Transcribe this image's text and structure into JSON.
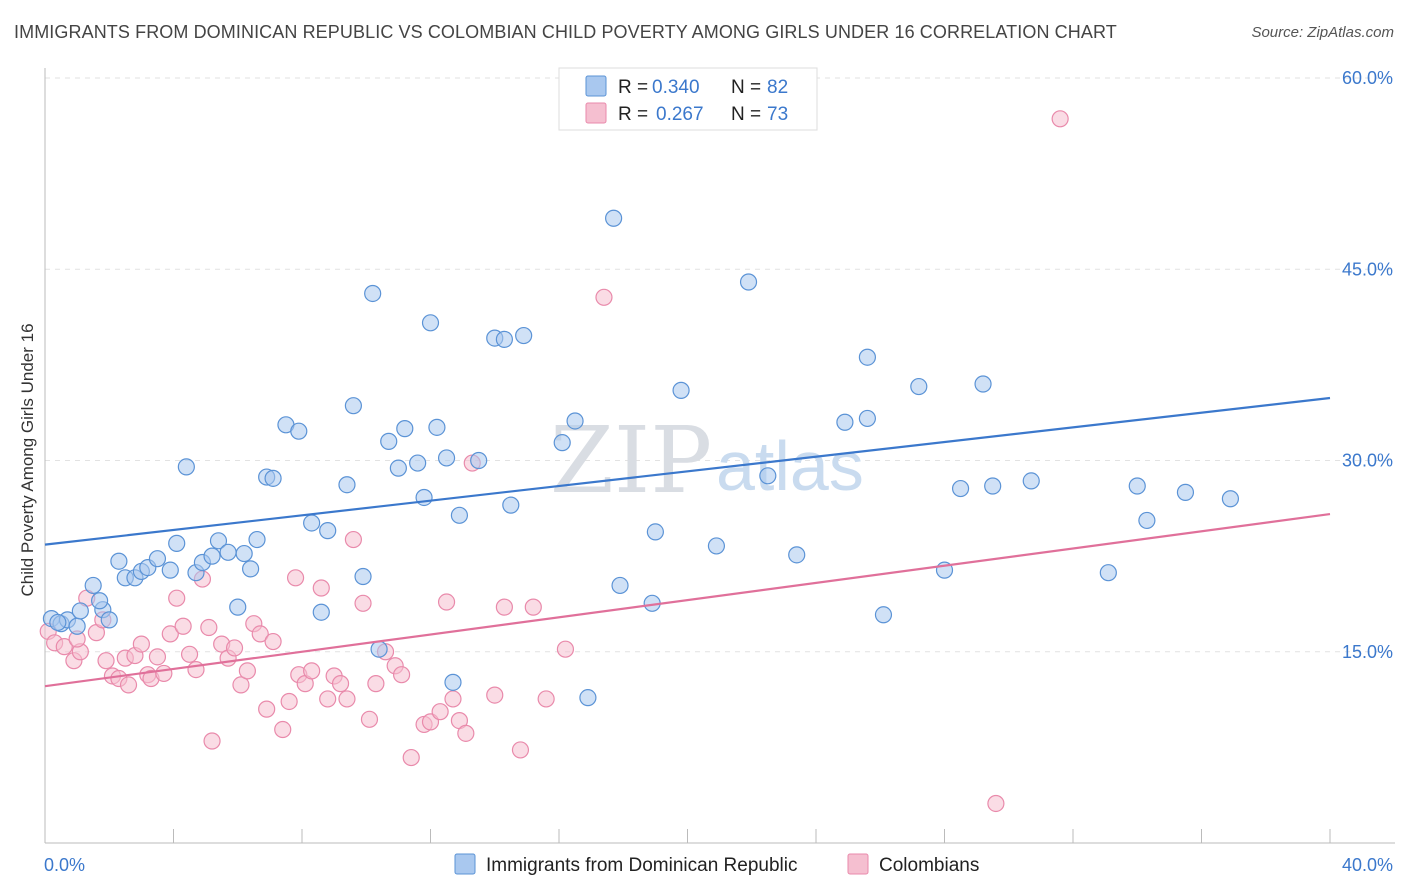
{
  "title": "IMMIGRANTS FROM DOMINICAN REPUBLIC VS COLOMBIAN CHILD POVERTY AMONG GIRLS UNDER 16 CORRELATION CHART",
  "source": "Source: ZipAtlas.com",
  "watermark": {
    "part1": "ZIP",
    "part2": "atlas"
  },
  "colors": {
    "blue": "#3b78cc",
    "blue_fill": "#a9c8ef",
    "blue_stroke": "#5b93d6",
    "pink": "#e0709a",
    "pink_fill": "#f5bfd0",
    "pink_stroke": "#e98aab",
    "grid": "#e2e2e2",
    "axis": "#bbbbbb"
  },
  "legend": {
    "items": [
      {
        "r_label": "R =",
        "r_value": "0.340",
        "n_label": "N =",
        "n_value": "82"
      },
      {
        "r_label": "R =",
        "r_value": "0.267",
        "n_label": "N =",
        "n_value": "73"
      }
    ]
  },
  "chart_data": {
    "type": "scatter",
    "title": "IMMIGRANTS FROM DOMINICAN REPUBLIC VS COLOMBIAN CHILD POVERTY AMONG GIRLS UNDER 16 CORRELATION CHART",
    "xlabel": "",
    "ylabel": "Child Poverty Among Girls Under 16",
    "xlim": [
      0,
      40
    ],
    "ylim": [
      0,
      60
    ],
    "x_tick_labels": [
      {
        "value": 0,
        "label": "0.0%"
      },
      {
        "value": 40,
        "label": "40.0%"
      }
    ],
    "y_tick_labels": [
      {
        "value": 15,
        "label": "15.0%"
      },
      {
        "value": 30,
        "label": "30.0%"
      },
      {
        "value": 45,
        "label": "45.0%"
      },
      {
        "value": 60,
        "label": "60.0%"
      }
    ],
    "grid": true,
    "legend_position": "top-center",
    "series": [
      {
        "name": "Immigrants from Dominican Republic",
        "color": "#3b78cc",
        "trend": {
          "x": [
            0,
            40
          ],
          "y": [
            23.4,
            34.9
          ]
        },
        "points": [
          [
            0.2,
            17.6
          ],
          [
            0.5,
            17.2
          ],
          [
            0.7,
            17.5
          ],
          [
            1.0,
            17.0
          ],
          [
            1.1,
            18.2
          ],
          [
            1.5,
            20.2
          ],
          [
            1.8,
            18.3
          ],
          [
            2.0,
            17.5
          ],
          [
            2.3,
            22.1
          ],
          [
            2.5,
            20.8
          ],
          [
            2.8,
            20.8
          ],
          [
            3.0,
            21.3
          ],
          [
            3.2,
            21.6
          ],
          [
            3.5,
            22.3
          ],
          [
            3.9,
            21.4
          ],
          [
            4.1,
            23.5
          ],
          [
            4.4,
            29.5
          ],
          [
            4.7,
            21.2
          ],
          [
            4.9,
            22.0
          ],
          [
            5.2,
            22.5
          ],
          [
            5.4,
            23.7
          ],
          [
            5.7,
            22.8
          ],
          [
            6.0,
            18.5
          ],
          [
            6.2,
            22.7
          ],
          [
            6.4,
            21.5
          ],
          [
            6.6,
            23.8
          ],
          [
            6.9,
            28.7
          ],
          [
            7.1,
            28.6
          ],
          [
            7.5,
            32.8
          ],
          [
            7.9,
            32.3
          ],
          [
            8.3,
            25.1
          ],
          [
            8.6,
            18.1
          ],
          [
            8.8,
            24.5
          ],
          [
            9.4,
            28.1
          ],
          [
            9.6,
            34.3
          ],
          [
            9.9,
            20.9
          ],
          [
            10.2,
            43.1
          ],
          [
            10.4,
            15.2
          ],
          [
            10.7,
            31.5
          ],
          [
            11.0,
            29.4
          ],
          [
            11.2,
            32.5
          ],
          [
            11.6,
            29.8
          ],
          [
            11.8,
            27.1
          ],
          [
            12.0,
            40.8
          ],
          [
            12.2,
            32.6
          ],
          [
            12.5,
            30.2
          ],
          [
            12.7,
            12.6
          ],
          [
            12.9,
            25.7
          ],
          [
            13.5,
            30.0
          ],
          [
            14.0,
            39.6
          ],
          [
            14.3,
            39.5
          ],
          [
            14.5,
            26.5
          ],
          [
            14.9,
            39.8
          ],
          [
            16.1,
            31.4
          ],
          [
            16.5,
            33.1
          ],
          [
            16.9,
            11.4
          ],
          [
            17.7,
            49.0
          ],
          [
            17.9,
            20.2
          ],
          [
            18.9,
            18.8
          ],
          [
            19.0,
            24.4
          ],
          [
            19.8,
            35.5
          ],
          [
            20.9,
            23.3
          ],
          [
            21.9,
            44.0
          ],
          [
            22.5,
            28.8
          ],
          [
            23.4,
            22.6
          ],
          [
            24.9,
            33.0
          ],
          [
            25.6,
            33.3
          ],
          [
            25.6,
            38.1
          ],
          [
            26.1,
            17.9
          ],
          [
            27.2,
            35.8
          ],
          [
            28.0,
            21.4
          ],
          [
            28.5,
            27.8
          ],
          [
            29.2,
            36.0
          ],
          [
            29.5,
            28.0
          ],
          [
            30.7,
            28.4
          ],
          [
            33.1,
            21.2
          ],
          [
            34.0,
            28.0
          ],
          [
            34.3,
            25.3
          ],
          [
            35.5,
            27.5
          ],
          [
            36.9,
            27.0
          ],
          [
            0.4,
            17.3
          ],
          [
            1.7,
            19.0
          ]
        ]
      },
      {
        "name": "Colombians",
        "color": "#e0709a",
        "trend": {
          "x": [
            0,
            40
          ],
          "y": [
            12.3,
            25.8
          ]
        },
        "points": [
          [
            0.1,
            16.6
          ],
          [
            0.3,
            15.7
          ],
          [
            0.6,
            15.4
          ],
          [
            0.9,
            14.3
          ],
          [
            1.1,
            15.0
          ],
          [
            1.3,
            19.2
          ],
          [
            1.6,
            16.5
          ],
          [
            1.8,
            17.5
          ],
          [
            1.9,
            14.3
          ],
          [
            2.1,
            13.1
          ],
          [
            2.3,
            12.9
          ],
          [
            2.5,
            14.5
          ],
          [
            2.6,
            12.4
          ],
          [
            2.8,
            14.7
          ],
          [
            3.0,
            15.6
          ],
          [
            3.2,
            13.2
          ],
          [
            3.3,
            12.9
          ],
          [
            3.5,
            14.6
          ],
          [
            3.7,
            13.3
          ],
          [
            3.9,
            16.4
          ],
          [
            4.1,
            19.2
          ],
          [
            4.3,
            17.0
          ],
          [
            4.5,
            14.8
          ],
          [
            4.7,
            13.6
          ],
          [
            4.9,
            20.7
          ],
          [
            5.1,
            16.9
          ],
          [
            5.2,
            8.0
          ],
          [
            5.5,
            15.6
          ],
          [
            5.7,
            14.5
          ],
          [
            5.9,
            15.3
          ],
          [
            6.1,
            12.4
          ],
          [
            6.3,
            13.5
          ],
          [
            6.5,
            17.2
          ],
          [
            6.7,
            16.4
          ],
          [
            6.9,
            10.5
          ],
          [
            7.1,
            15.8
          ],
          [
            7.4,
            8.9
          ],
          [
            7.6,
            11.1
          ],
          [
            7.8,
            20.8
          ],
          [
            7.9,
            13.2
          ],
          [
            8.1,
            12.5
          ],
          [
            8.3,
            13.5
          ],
          [
            8.6,
            20.0
          ],
          [
            8.8,
            11.3
          ],
          [
            9.0,
            13.1
          ],
          [
            9.2,
            12.5
          ],
          [
            9.4,
            11.3
          ],
          [
            9.6,
            23.8
          ],
          [
            9.9,
            18.8
          ],
          [
            10.1,
            9.7
          ],
          [
            10.3,
            12.5
          ],
          [
            10.6,
            15.0
          ],
          [
            10.9,
            13.9
          ],
          [
            11.1,
            13.2
          ],
          [
            11.4,
            6.7
          ],
          [
            11.8,
            9.3
          ],
          [
            12.0,
            9.5
          ],
          [
            12.3,
            10.3
          ],
          [
            12.5,
            18.9
          ],
          [
            12.7,
            11.3
          ],
          [
            12.9,
            9.6
          ],
          [
            13.1,
            8.6
          ],
          [
            13.3,
            29.8
          ],
          [
            14.0,
            11.6
          ],
          [
            14.3,
            18.5
          ],
          [
            14.8,
            7.3
          ],
          [
            15.2,
            18.5
          ],
          [
            15.6,
            11.3
          ],
          [
            16.2,
            15.2
          ],
          [
            17.4,
            42.8
          ],
          [
            29.6,
            3.1
          ],
          [
            31.6,
            56.8
          ],
          [
            1.0,
            16.0
          ]
        ]
      }
    ]
  },
  "bottom_legend": {
    "items": [
      {
        "label": "Immigrants from Dominican Republic"
      },
      {
        "label": "Colombians"
      }
    ]
  }
}
